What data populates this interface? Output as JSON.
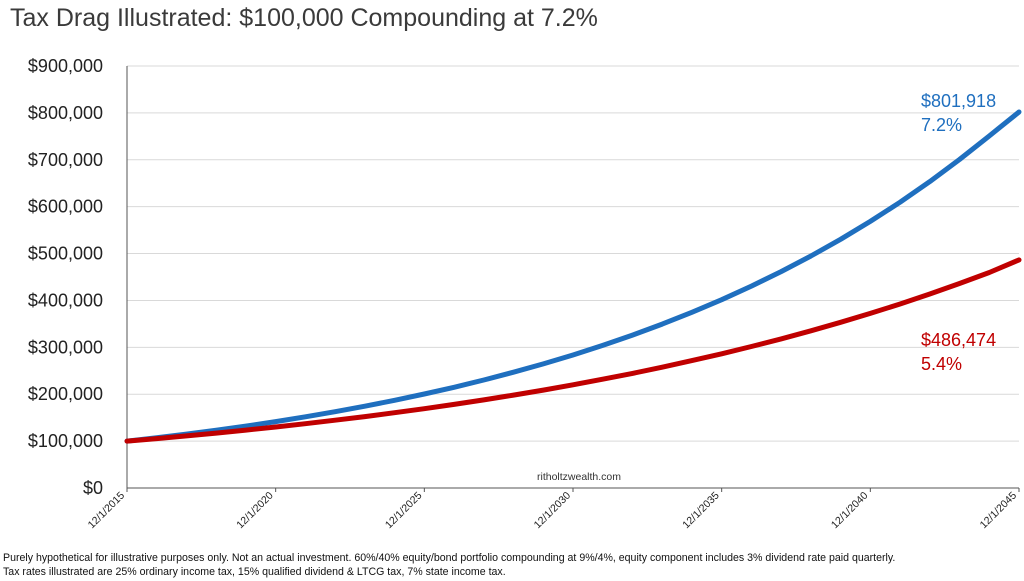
{
  "chart_data": {
    "type": "line",
    "title": "Tax Drag Illustrated: $100,000 Compounding at 7.2%",
    "xlabel": "",
    "ylabel": "",
    "x_ticks": [
      "12/1/2015",
      "12/1/2020",
      "12/1/2025",
      "12/1/2030",
      "12/1/2035",
      "12/1/2040",
      "12/1/2045"
    ],
    "y_ticks": [
      "$0",
      "$100,000",
      "$200,000",
      "$300,000",
      "$400,000",
      "$500,000",
      "$600,000",
      "$700,000",
      "$800,000",
      "$900,000"
    ],
    "xlim": [
      2015,
      2045
    ],
    "ylim": [
      0,
      900000
    ],
    "grid": "horizontal",
    "legend": "none",
    "series": [
      {
        "color": "#1f6fbf",
        "x": [
          2015,
          2016,
          2017,
          2018,
          2019,
          2020,
          2021,
          2022,
          2023,
          2024,
          2025,
          2026,
          2027,
          2028,
          2029,
          2030,
          2031,
          2032,
          2033,
          2034,
          2035,
          2036,
          2037,
          2038,
          2039,
          2040,
          2041,
          2042,
          2043,
          2044,
          2045
        ],
        "values": [
          100000,
          107200,
          114918,
          123192,
          132062,
          141571,
          151764,
          162691,
          174405,
          186962,
          200423,
          214853,
          230322,
          246906,
          264683,
          283741,
          304170,
          326070,
          349547,
          374714,
          401694,
          430616,
          461620,
          494856,
          530486,
          568681,
          609626,
          653519,
          700573,
          751014,
          801918
        ],
        "end_value_label": "$801,918",
        "end_rate_label": "7.2%"
      },
      {
        "color": "#c00000",
        "x": [
          2015,
          2016,
          2017,
          2018,
          2019,
          2020,
          2021,
          2022,
          2023,
          2024,
          2025,
          2026,
          2027,
          2028,
          2029,
          2030,
          2031,
          2032,
          2033,
          2034,
          2035,
          2036,
          2037,
          2038,
          2039,
          2040,
          2041,
          2042,
          2043,
          2044,
          2045
        ],
        "values": [
          100000,
          105400,
          111092,
          117091,
          123414,
          130078,
          137102,
          144506,
          152309,
          160534,
          169203,
          178340,
          187971,
          198121,
          208820,
          220096,
          231981,
          244508,
          257712,
          271628,
          286296,
          301756,
          318051,
          335226,
          353328,
          372408,
          392518,
          413714,
          436055,
          459602,
          486474
        ],
        "end_value_label": "$486,474",
        "end_rate_label": "5.4%"
      }
    ],
    "annotations": [
      "ritholtzwealth.com"
    ]
  },
  "footnote": {
    "line1": "Purely hypothetical for illustrative purposes only. Not an actual investment. 60%/40% equity/bond portfolio compounding at 9%/4%, equity component includes 3% dividend rate paid quarterly.",
    "line2": "Tax rates illustrated are 25% ordinary income tax, 15% qualified dividend & LTCG tax, 7% state income tax."
  }
}
